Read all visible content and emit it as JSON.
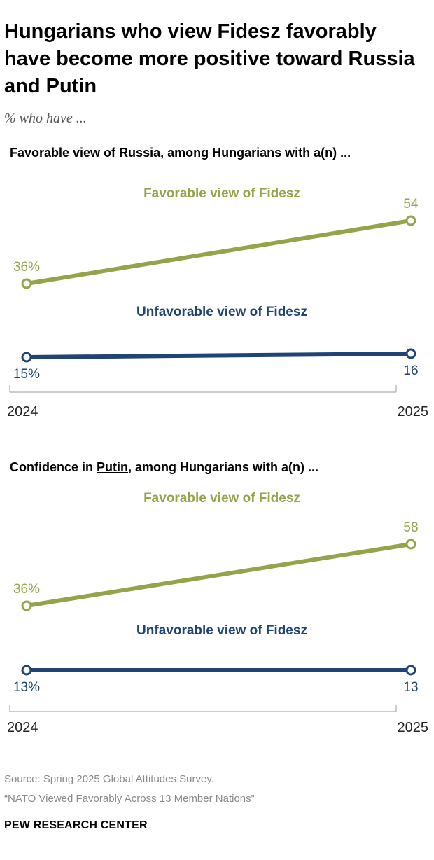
{
  "title": "Hungarians who view Fidesz favorably have become more positive toward Russia and Putin",
  "subtitle": "% who have ...",
  "colors": {
    "favorable": "#94a44b",
    "unfavorable": "#1f4475",
    "axis": "#bbbbbb"
  },
  "chart_data": [
    {
      "type": "line",
      "title_parts": [
        "Favorable view of ",
        "Russia",
        ", among Hungarians with a(n) ..."
      ],
      "x": [
        "2024",
        "2025"
      ],
      "ylim": [
        0,
        100
      ],
      "series": [
        {
          "name": "Favorable view of Fidesz",
          "values": [
            36,
            54
          ],
          "labels": [
            "36%",
            "54"
          ]
        },
        {
          "name": "Unfavorable view of Fidesz",
          "values": [
            15,
            16
          ],
          "labels": [
            "15%",
            "16"
          ]
        }
      ]
    },
    {
      "type": "line",
      "title_parts": [
        "Confidence in ",
        "Putin",
        ", among Hungarians with a(n) ..."
      ],
      "x": [
        "2024",
        "2025"
      ],
      "ylim": [
        0,
        100
      ],
      "series": [
        {
          "name": "Favorable view of Fidesz",
          "values": [
            36,
            58
          ],
          "labels": [
            "36%",
            "58"
          ]
        },
        {
          "name": "Unfavorable view of Fidesz",
          "values": [
            13,
            13
          ],
          "labels": [
            "13%",
            "13"
          ]
        }
      ]
    }
  ],
  "source_line1": "Source: Spring 2025 Global Attitudes Survey.",
  "source_line2": "“NATO Viewed Favorably Across 13 Member Nations”",
  "brand": "PEW RESEARCH CENTER"
}
